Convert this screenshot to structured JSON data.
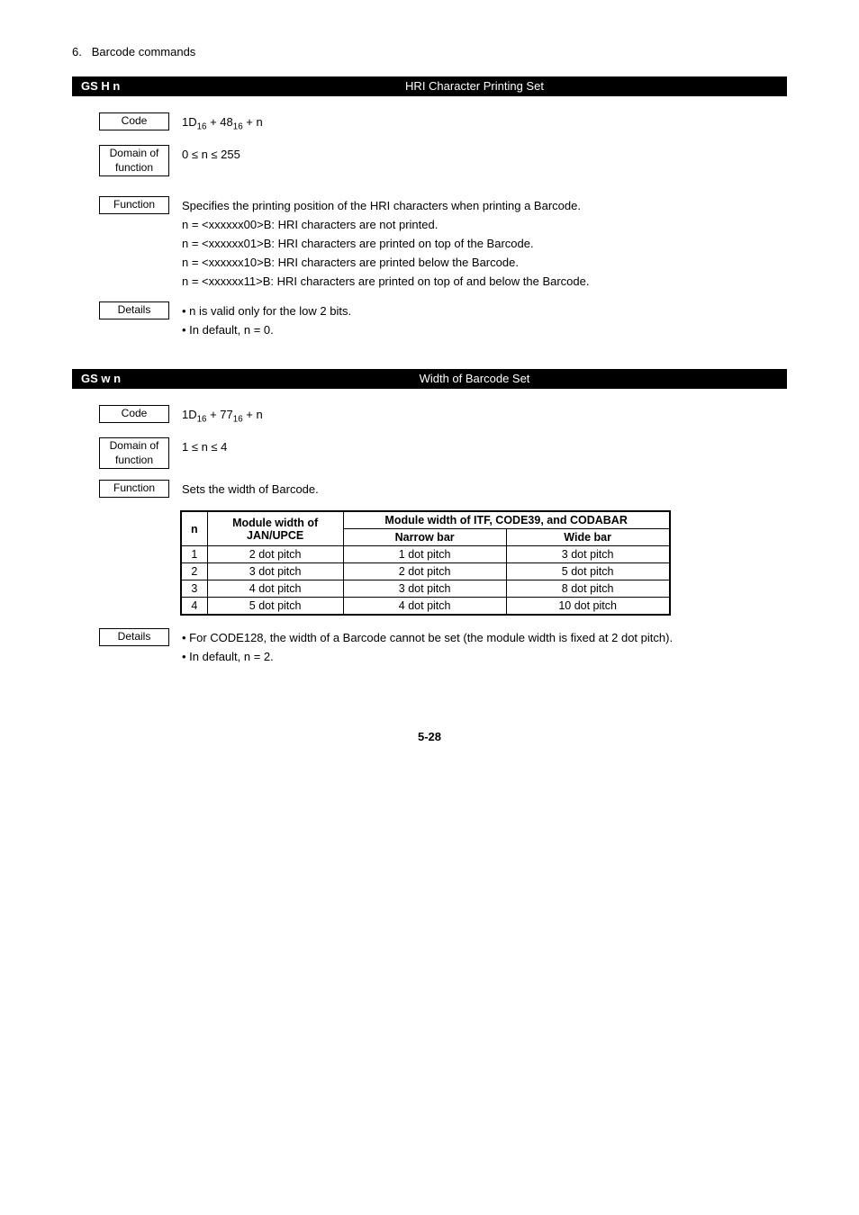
{
  "section": {
    "number": "6.",
    "title": "Barcode commands"
  },
  "cmd1": {
    "name": "GS H n",
    "title": "HRI Character Printing Set",
    "code": "1D₁₆ + 48₁₆ + n",
    "code_html": "1D<sub>16</sub> + 48<sub>16</sub> + n",
    "domain": "0 ≤ n ≤ 255",
    "function_intro": "Specifies the printing position of the HRI characters when printing a Barcode.",
    "function_lines": [
      "n = <xxxxxx00>B:  HRI characters are not printed.",
      "n = <xxxxxx01>B:  HRI characters are printed on top of the Barcode.",
      "n = <xxxxxx10>B:  HRI characters are printed below the Barcode.",
      "n = <xxxxxx11>B:  HRI characters are printed on top of and below the Barcode."
    ],
    "details": [
      "• n is valid only for the low 2 bits.",
      "• In default, n = 0."
    ]
  },
  "cmd2": {
    "name": "GS w n",
    "title": "Width of Barcode Set",
    "code_html": "1D<sub>16</sub> + 77<sub>16</sub> + n",
    "domain": "1 ≤ n ≤ 4",
    "function": "Sets the width of Barcode.",
    "table": {
      "head_n": "n",
      "head_mw": "Module width of JAN/UPCE",
      "head_itf": "Module width of ITF, CODE39, and CODABAR",
      "head_narrow": "Narrow bar",
      "head_wide": "Wide bar",
      "rows": [
        {
          "n": "1",
          "mw": "2 dot pitch",
          "narrow": "1 dot pitch",
          "wide": "3 dot pitch"
        },
        {
          "n": "2",
          "mw": "3 dot pitch",
          "narrow": "2 dot pitch",
          "wide": "5 dot pitch"
        },
        {
          "n": "3",
          "mw": "4 dot pitch",
          "narrow": "3 dot pitch",
          "wide": "8 dot pitch"
        },
        {
          "n": "4",
          "mw": "5 dot pitch",
          "narrow": "4 dot pitch",
          "wide": "10 dot pitch"
        }
      ]
    },
    "details": [
      "• For CODE128, the width of a Barcode cannot be set (the module width is fixed at 2 dot pitch).",
      "• In default, n = 2."
    ]
  },
  "labels": {
    "code": "Code",
    "domain": "Domain of function",
    "function": "Function",
    "details": "Details"
  },
  "page": "5-28"
}
